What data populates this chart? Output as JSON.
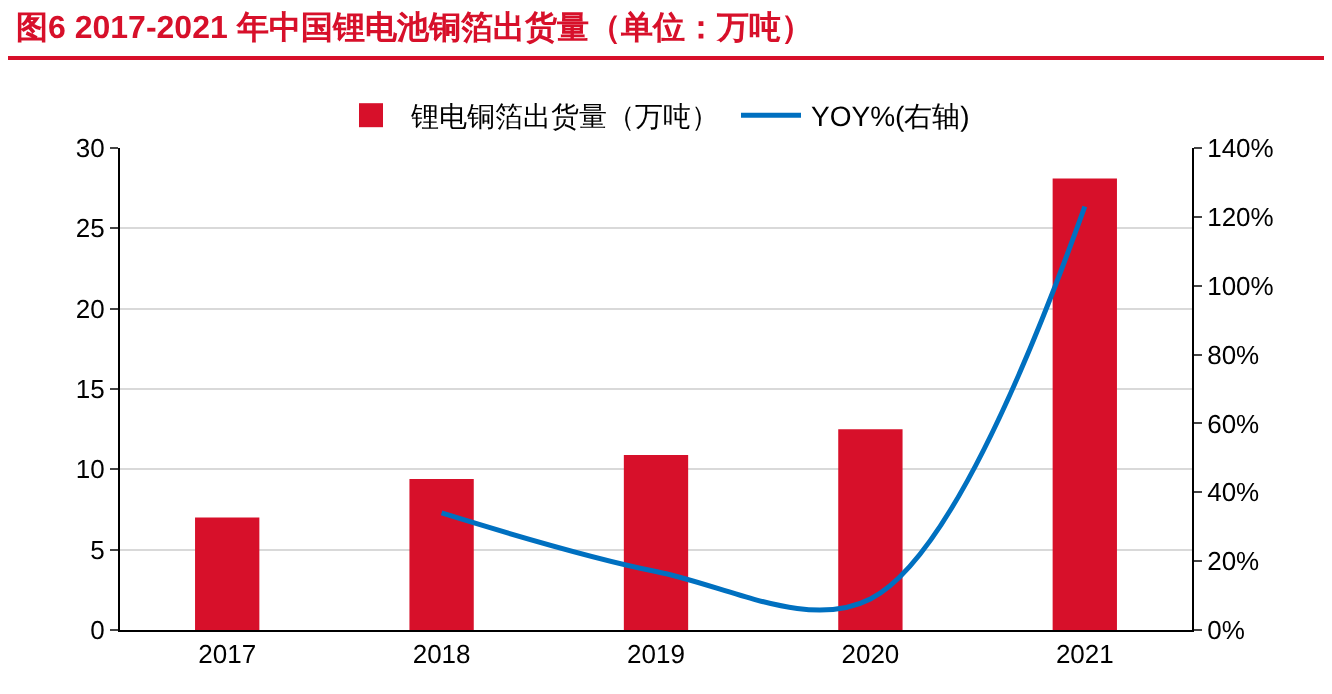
{
  "chart_data": {
    "type": "bar",
    "title": "图6  2017-2021 年中国锂电池铜箔出货量（单位：万吨）",
    "categories": [
      "2017",
      "2018",
      "2019",
      "2020",
      "2021"
    ],
    "series": [
      {
        "name": "锂电铜箔出货量（万吨）",
        "color": "#d7102a",
        "values": [
          7.0,
          9.4,
          10.9,
          12.5,
          28.1
        ]
      },
      {
        "name": "YOY%(右轴)",
        "type": "line",
        "axis": "y2",
        "color": "#0070c0",
        "values": [
          null,
          34,
          17,
          9,
          123
        ]
      }
    ],
    "ylim": [
      0,
      30
    ],
    "yticks": [
      0,
      5,
      10,
      15,
      20,
      25,
      30
    ],
    "y2lim": [
      0,
      140
    ],
    "y2ticks": [
      {
        "value": 0,
        "label": "0%"
      },
      {
        "value": 20,
        "label": "20%"
      },
      {
        "value": 40,
        "label": "40%"
      },
      {
        "value": 60,
        "label": "60%"
      },
      {
        "value": 80,
        "label": "80%"
      },
      {
        "value": 100,
        "label": "100%"
      },
      {
        "value": 120,
        "label": "120%"
      },
      {
        "value": 140,
        "label": "140%"
      }
    ],
    "grid": "y",
    "legend": "top",
    "marker": "none",
    "line_style": "solid"
  }
}
